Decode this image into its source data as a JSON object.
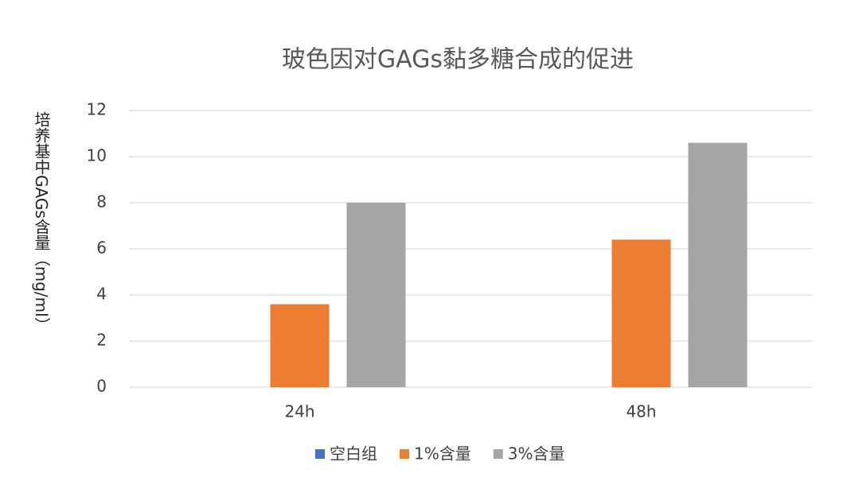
{
  "chart_data": {
    "type": "bar",
    "title": "玻色因对GAGs黏多糖合成的促进",
    "y_label": "培养基中GAGs含量（mg/ml）",
    "categories": [
      "24h",
      "48h"
    ],
    "series": [
      {
        "name": "空白组",
        "color": "#4472c4",
        "values": [
          0,
          0
        ]
      },
      {
        "name": "1%含量",
        "color": "#ed7d31",
        "values": [
          3.6,
          6.4
        ]
      },
      {
        "name": "3%含量",
        "color": "#a5a5a5",
        "values": [
          8.0,
          10.6
        ]
      }
    ],
    "ylim": [
      0,
      12
    ],
    "yticks": [
      0,
      2,
      4,
      6,
      8,
      10,
      12
    ],
    "grid": true,
    "legend": "bottom"
  }
}
